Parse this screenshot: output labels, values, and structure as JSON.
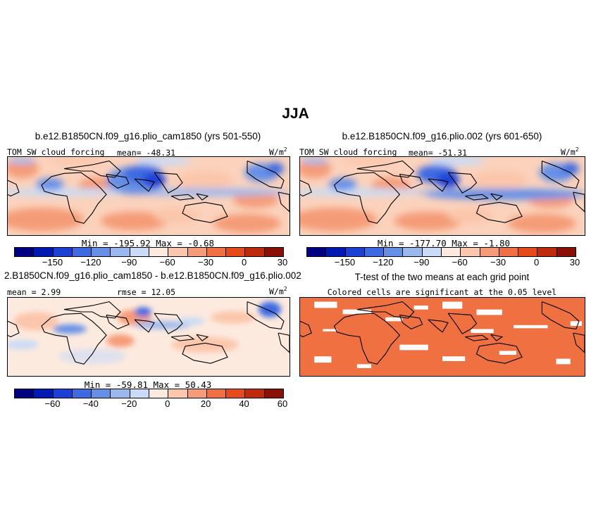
{
  "title": "JJA",
  "panels": [
    {
      "id": "p1",
      "title": "b.e12.B1850CN.f09_g16.plio_cam1850 (yrs 501-550)",
      "variable": "TOM SW cloud forcing",
      "mean_text": "mean= -48.31",
      "units_main": "W/m",
      "units_sup": "2",
      "minmax": "Min = -195.92 Max =  -0.68"
    },
    {
      "id": "p2",
      "title": "b.e12.B1850CN.f09_g16.plio.002 (yrs 601-650)",
      "variable": "TOM SW cloud forcing",
      "mean_text": "mean= -51.31",
      "units_main": "W/m",
      "units_sup": "2",
      "minmax": "Min = -177.70 Max =  -1.80"
    },
    {
      "id": "p3",
      "title": "2.B1850CN.f09_g16.plio_cam1850 - b.e12.B1850CN.f09_g16.plio.002",
      "mean_text": "mean =  2.99",
      "rmse_text": "rmse =  12.05",
      "units_main": "W/m",
      "units_sup": "2",
      "minmax": "Min = -59.81 Max =  50.43"
    },
    {
      "id": "p4",
      "title": "T-test of the two means at each grid point",
      "subtitle": "Colored cells are significant at the 0.05 level"
    }
  ],
  "chart_data": [
    {
      "type": "heatmap",
      "panel": "p1",
      "title": "b.e12.B1850CN.f09_g16.plio_cam1850 (yrs 501-550)",
      "variable": "TOM SW cloud forcing",
      "units": "W/m2",
      "mean": -48.31,
      "min": -195.92,
      "max": -0.68,
      "colorbar_ticks": [
        "-150",
        "-120",
        "-90",
        "-60",
        "-30",
        "0",
        "30"
      ],
      "colorbar_colors": [
        "#000080",
        "#0019b3",
        "#1c3fd6",
        "#3d6ae0",
        "#6690e6",
        "#9bb8ee",
        "#c9dbf6",
        "#fdeadf",
        "#fbc6ab",
        "#f59b77",
        "#ef7044",
        "#e44a1c",
        "#c02a0c",
        "#8a0f05"
      ]
    },
    {
      "type": "heatmap",
      "panel": "p2",
      "title": "b.e12.B1850CN.f09_g16.plio.002 (yrs 601-650)",
      "variable": "TOM SW cloud forcing",
      "units": "W/m2",
      "mean": -51.31,
      "min": -177.7,
      "max": -1.8,
      "colorbar_ticks": [
        "-150",
        "-120",
        "-90",
        "-60",
        "-30",
        "0",
        "30"
      ],
      "colorbar_colors": [
        "#000080",
        "#0019b3",
        "#1c3fd6",
        "#3d6ae0",
        "#6690e6",
        "#9bb8ee",
        "#c9dbf6",
        "#fdeadf",
        "#fbc6ab",
        "#f59b77",
        "#ef7044",
        "#e44a1c",
        "#c02a0c",
        "#8a0f05"
      ]
    },
    {
      "type": "heatmap",
      "panel": "p3",
      "title": "2.B1850CN.f09_g16.plio_cam1850 - b.e12.B1850CN.f09_g16.plio.002",
      "units": "W/m2",
      "mean": 2.99,
      "rmse": 12.05,
      "min": -59.81,
      "max": 50.43,
      "colorbar_ticks": [
        "-60",
        "-40",
        "-20",
        "0",
        "20",
        "40",
        "60"
      ],
      "colorbar_colors": [
        "#000080",
        "#0019b3",
        "#1c3fd6",
        "#3d6ae0",
        "#6690e6",
        "#9bb8ee",
        "#c9dbf6",
        "#fdeadf",
        "#fbc6ab",
        "#f59b77",
        "#ef7044",
        "#e44a1c",
        "#c02a0c",
        "#8a0f05"
      ]
    },
    {
      "type": "heatmap",
      "panel": "p4",
      "title": "T-test of the two means at each grid point",
      "subtitle": "Colored cells are significant at the 0.05 level",
      "significant_color": "#ef7040",
      "not_significant_color": "#ffffff"
    }
  ]
}
